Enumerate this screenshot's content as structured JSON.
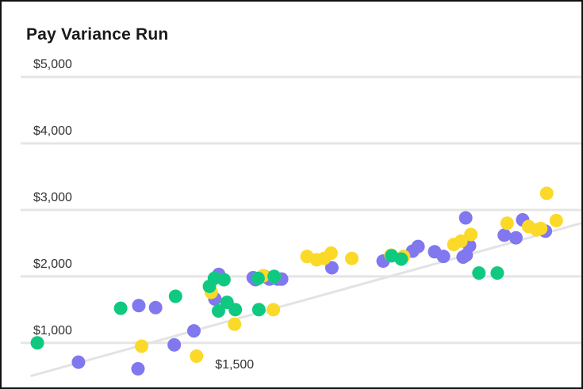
{
  "chart_data": {
    "type": "scatter",
    "title": "Pay Variance Run",
    "xlabel": "",
    "ylabel": "",
    "xlim": [
      600,
      2840
    ],
    "ylim": [
      330,
      5180
    ],
    "y_ticks": [
      1000,
      2000,
      3000,
      4000,
      5000
    ],
    "y_tick_labels": [
      "$1,000",
      "$2,000",
      "$3,000",
      "$4,000",
      "$5,000"
    ],
    "x_ticks": [
      1500
    ],
    "x_tick_labels": [
      "$1,500"
    ],
    "grid": "horizontal",
    "colors": {
      "purple": "#8177ee",
      "yellow": "#fbd928",
      "green": "#10c981",
      "grid": "#e5e5e5",
      "trend": "#e3e3e3"
    },
    "trend": {
      "x": [
        712,
        2840
      ],
      "y": [
        500,
        2800
      ]
    },
    "series": [
      {
        "color_key": "purple",
        "x": [
          897,
          1127,
          1130,
          1195,
          1267,
          1343,
          1424,
          1439,
          1572,
          1581,
          1616,
          1635,
          1642,
          1667,
          1682,
          1876,
          2074,
          2188,
          2209,
          2273,
          2307,
          2383,
          2393,
          2395,
          2408,
          2542,
          2587,
          2613,
          2701
        ],
        "y": [
          710,
          610,
          1560,
          1530,
          970,
          1180,
          1660,
          2030,
          1980,
          1950,
          2000,
          1960,
          1970,
          1960,
          1960,
          2130,
          2230,
          2380,
          2450,
          2370,
          2300,
          2290,
          2880,
          2320,
          2460,
          2620,
          2580,
          2850,
          2680
        ]
      },
      {
        "color_key": "yellow",
        "x": [
          1141,
          1353,
          1410,
          1500,
          1611,
          1650,
          1653,
          1780,
          1817,
          1846,
          1873,
          1953,
          2104,
          2153,
          2347,
          2375,
          2413,
          2553,
          2636,
          2667,
          2683,
          2706,
          2743
        ],
        "y": [
          950,
          800,
          1760,
          1280,
          2010,
          1500,
          2000,
          2300,
          2250,
          2270,
          2350,
          2270,
          2320,
          2300,
          2480,
          2530,
          2630,
          2800,
          2750,
          2700,
          2720,
          3250,
          2840
        ]
      },
      {
        "color_key": "green",
        "x": [
          738,
          1060,
          1272,
          1403,
          1422,
          1438,
          1459,
          1471,
          1503,
          1591,
          1594,
          1653,
          2107,
          2144,
          2444,
          2515
        ],
        "y": [
          1000,
          1520,
          1700,
          1850,
          1970,
          1480,
          1950,
          1610,
          1500,
          1970,
          1500,
          2000,
          2310,
          2260,
          2050,
          2050
        ]
      }
    ]
  }
}
